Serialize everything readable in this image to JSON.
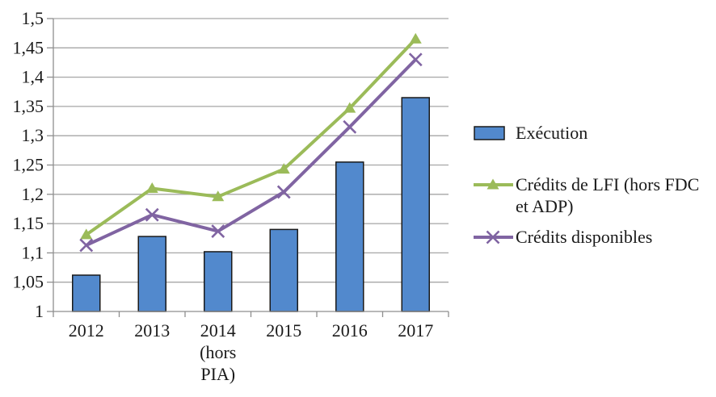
{
  "chart_data": {
    "type": "combo-bar-line",
    "title": "",
    "xlabel": "",
    "ylabel": "",
    "categories": [
      "2012",
      "2013",
      "2014 (hors PIA)",
      "2015",
      "2016",
      "2017"
    ],
    "category_label_lines": [
      [
        "2012"
      ],
      [
        "2013"
      ],
      [
        "2014",
        "(hors",
        "PIA)"
      ],
      [
        "2015"
      ],
      [
        "2016"
      ],
      [
        "2017"
      ]
    ],
    "series": [
      {
        "name": "Exécution",
        "type": "bar",
        "color": "#5289CD",
        "border_color": "#1a1a1a",
        "values": [
          1.062,
          1.128,
          1.102,
          1.14,
          1.255,
          1.365
        ]
      },
      {
        "name": "Crédits de LFI (hors FDC et ADP)",
        "type": "line",
        "marker": "triangle",
        "color": "#9BBB59",
        "values": [
          1.131,
          1.21,
          1.196,
          1.243,
          1.347,
          1.465
        ]
      },
      {
        "name": "Crédits disponibles",
        "type": "line",
        "marker": "x",
        "color": "#8064A2",
        "values": [
          1.113,
          1.165,
          1.137,
          1.204,
          1.315,
          1.43
        ]
      }
    ],
    "ylim": [
      1,
      1.5
    ],
    "y_tick_step": 0.05,
    "y_tick_labels": [
      "1",
      "1,05",
      "1,1",
      "1,15",
      "1,2",
      "1,25",
      "1,3",
      "1,35",
      "1,4",
      "1,45",
      "1,5"
    ],
    "grid": true,
    "gridline_color": "#A6A6A6",
    "axis_color": "#8E8E8E",
    "text_color": "#1a1a1a",
    "legend_position": "right"
  },
  "legend": {
    "items": [
      {
        "label": "Exécution",
        "lines": [
          "Exécution"
        ]
      },
      {
        "label": "Crédits de LFI (hors FDC et ADP)",
        "lines": [
          "Crédits de LFI (hors FDC",
          "et ADP)"
        ]
      },
      {
        "label": "Crédits disponibles",
        "lines": [
          "Crédits disponibles"
        ]
      }
    ]
  }
}
